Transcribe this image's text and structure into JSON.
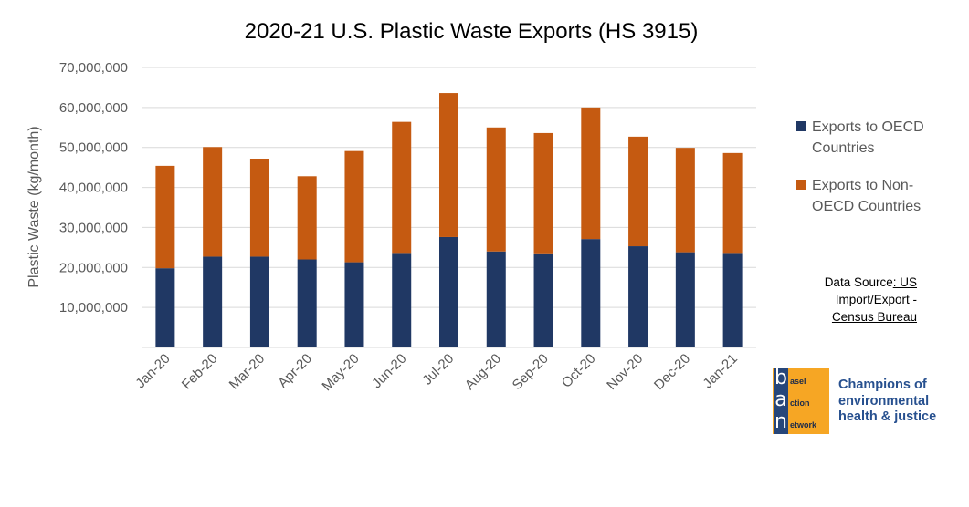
{
  "chart_data": {
    "type": "bar",
    "stacked": true,
    "title": "2020-21 U.S. Plastic Waste Exports (HS 3915)",
    "xlabel": "",
    "ylabel": "Plastic Waste (kg/month)",
    "ylim": [
      0,
      70000000
    ],
    "yticks": [
      10000000,
      20000000,
      30000000,
      40000000,
      50000000,
      60000000,
      70000000
    ],
    "ytick_labels": [
      "10,000,000",
      "20,000,000",
      "30,000,000",
      "40,000,000",
      "50,000,000",
      "60,000,000",
      "70,000,000"
    ],
    "grid": true,
    "legend_position": "right",
    "categories": [
      "Jan-20",
      "Feb-20",
      "Mar-20",
      "Apr-20",
      "May-20",
      "Jun-20",
      "Jul-20",
      "Aug-20",
      "Sep-20",
      "Oct-20",
      "Nov-20",
      "Dec-20",
      "Jan-21"
    ],
    "series": [
      {
        "name": "Exports to OECD Countries",
        "color": "#203864",
        "values": [
          19800000,
          22700000,
          22700000,
          22000000,
          21300000,
          23400000,
          27600000,
          24000000,
          23300000,
          27100000,
          25300000,
          23800000,
          23400000
        ]
      },
      {
        "name": "Exports to Non-OECD Countries",
        "color": "#c55a11",
        "values": [
          25600000,
          27400000,
          24500000,
          20800000,
          27800000,
          33000000,
          36000000,
          31000000,
          30300000,
          32900000,
          27400000,
          26100000,
          25200000
        ]
      }
    ]
  },
  "legend": {
    "items": [
      {
        "label": "Exports to OECD\nCountries",
        "color": "#203864"
      },
      {
        "label": "Exports to Non-\nOECD Countries",
        "color": "#c55a11"
      }
    ]
  },
  "source": {
    "prefix": "Data Source",
    "line1": ": US",
    "line2": "Import/Export -",
    "line3": "Census Bureau"
  },
  "logo": {
    "letters": [
      "b",
      "a",
      "n"
    ],
    "words": [
      "asel",
      "ction",
      "etwork"
    ]
  },
  "tagline": "Champions of\nenvironmental\nhealth & justice"
}
